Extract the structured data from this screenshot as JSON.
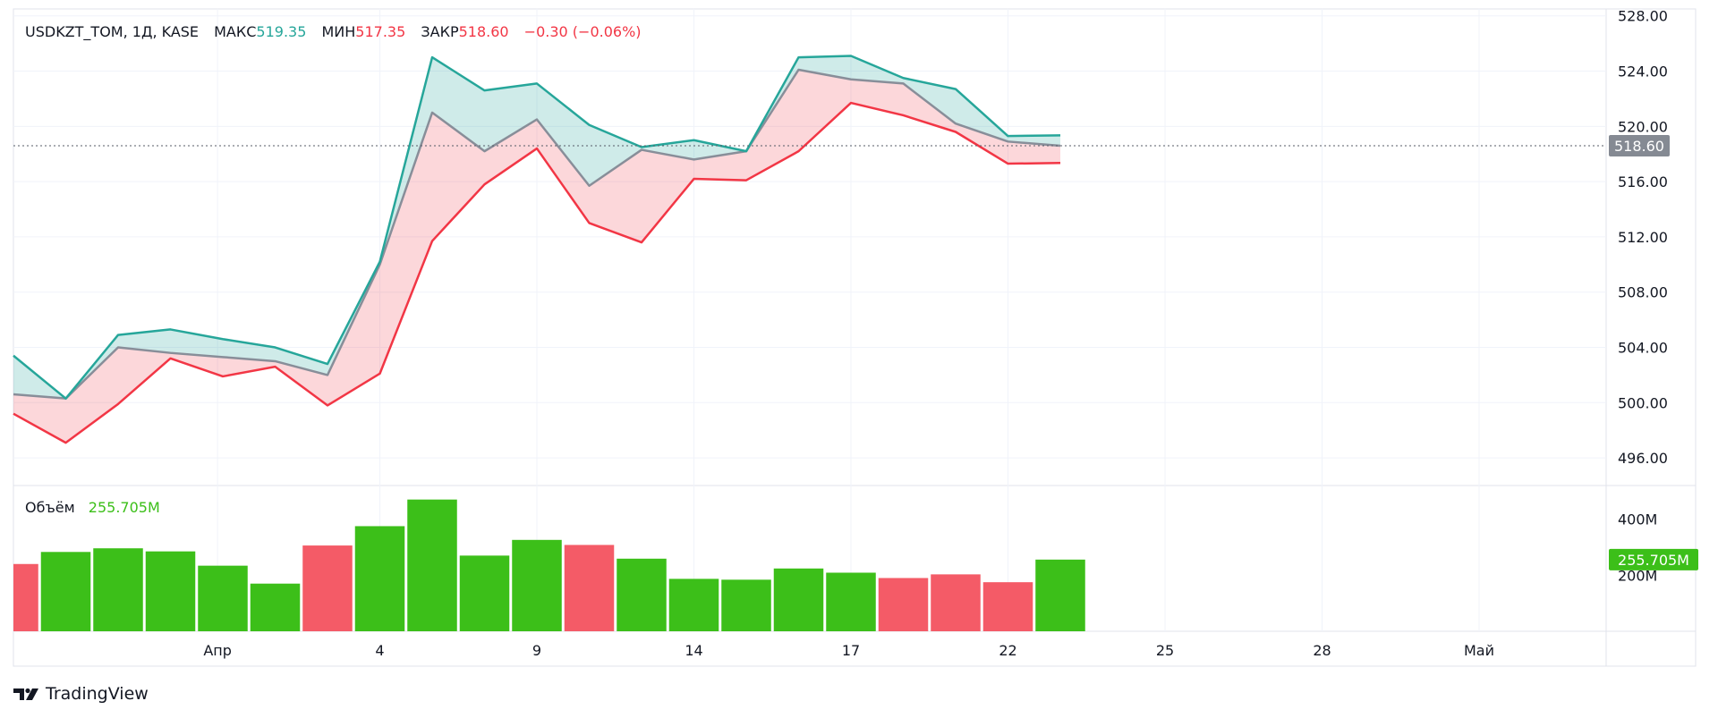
{
  "header": {
    "symbol": "USDKZT_TOM, 1Д, KASE",
    "high_label": "МАКС",
    "high_value": "519.35",
    "low_label": "МИН",
    "low_value": "517.35",
    "close_label": "ЗАКР",
    "close_value": "518.60",
    "change": "−0.30 (−0.06%)"
  },
  "volume_legend": {
    "label": "Объём",
    "value": "255.705M"
  },
  "price_axis": {
    "ticks": [
      "528.00",
      "524.00",
      "520.00",
      "516.00",
      "512.00",
      "508.00",
      "504.00",
      "500.00",
      "496.00"
    ],
    "current_label": "518.60"
  },
  "volume_axis": {
    "ticks": [
      "400M",
      "200M"
    ],
    "current_label": "255.705M"
  },
  "time_axis": {
    "ticks": [
      "Апр",
      "4",
      "9",
      "14",
      "17",
      "22",
      "25",
      "28",
      "Май"
    ]
  },
  "brand": {
    "name": "TradingView"
  },
  "colors": {
    "high_line": "#26a69a",
    "low_line": "#f23645",
    "close_line": "#888e99",
    "high_fill": "rgba(38,166,154,0.22)",
    "low_fill": "rgba(242,54,69,0.20)",
    "vol_up": "#3cbf19",
    "vol_down": "#f45b67",
    "price_badge": "#858a93",
    "text_up": "#26a69a",
    "text_down": "#f23645",
    "volume_text": "#3cbf19"
  },
  "chart_data": {
    "type": "area",
    "y_range": [
      494,
      528.5
    ],
    "series": [
      {
        "name": "МАКС",
        "values": [
          503.4,
          500.3,
          504.9,
          505.3,
          504.6,
          504.0,
          502.8,
          510.2,
          525.0,
          522.6,
          523.1,
          520.1,
          518.5,
          519.0,
          518.2,
          525.0,
          525.1,
          523.5,
          522.7,
          519.3,
          519.35
        ]
      },
      {
        "name": "МИН",
        "values": [
          499.2,
          497.1,
          499.9,
          503.2,
          501.9,
          502.6,
          499.8,
          502.1,
          511.7,
          515.8,
          518.4,
          513.0,
          511.6,
          516.2,
          516.1,
          518.2,
          521.7,
          520.8,
          519.6,
          517.3,
          517.35
        ]
      },
      {
        "name": "ЗАКР",
        "values": [
          500.6,
          500.3,
          504.0,
          503.6,
          503.3,
          503.0,
          502.0,
          510.0,
          521.0,
          518.2,
          520.5,
          515.7,
          518.3,
          517.6,
          518.2,
          524.1,
          523.4,
          523.1,
          520.2,
          518.9,
          518.6
        ]
      }
    ],
    "last_value": 518.6,
    "volume": {
      "values": [
        240,
        283,
        296,
        285,
        234,
        170,
        306,
        375,
        470,
        270,
        326,
        308,
        259,
        187,
        184,
        224,
        209,
        190,
        203,
        175,
        255.705
      ],
      "up": [
        false,
        true,
        true,
        true,
        true,
        true,
        false,
        true,
        true,
        true,
        true,
        false,
        true,
        true,
        true,
        true,
        true,
        false,
        false,
        false,
        true
      ],
      "y_range": [
        0,
        520
      ]
    },
    "time_axis_ticks": [
      "Апр",
      "4",
      "9",
      "14",
      "17",
      "22",
      "25",
      "28",
      "Май"
    ]
  }
}
